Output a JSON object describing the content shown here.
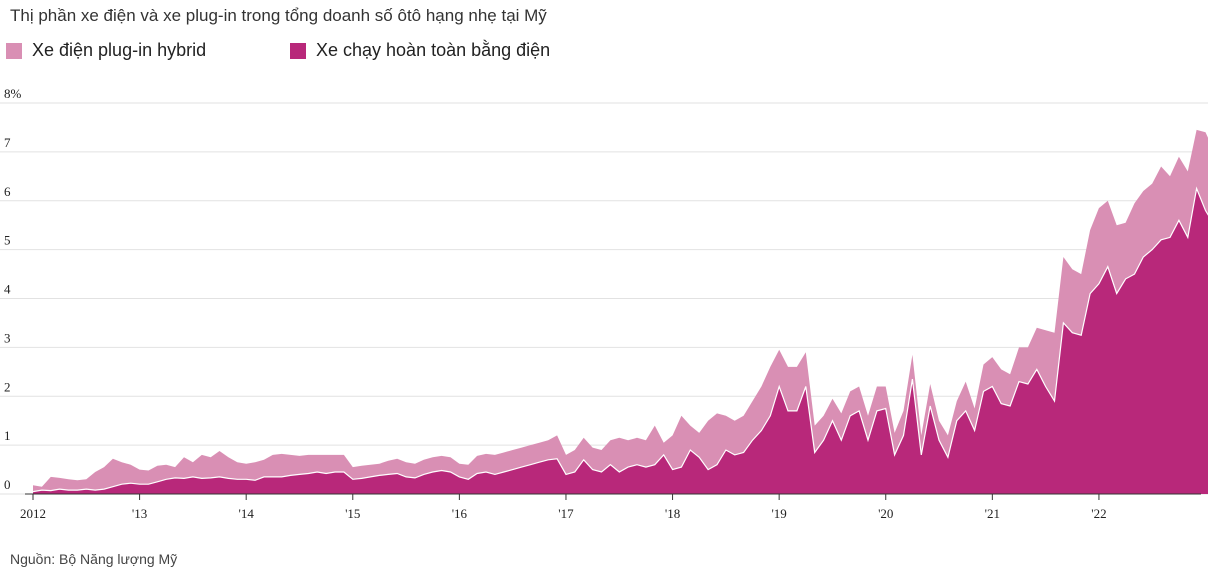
{
  "chart_data": {
    "type": "area",
    "title": "Thị phần xe điện và xe plug-in trong tổng doanh số ôtô hạng nhẹ tại Mỹ",
    "source": "Nguồn: Bộ Năng lượng Mỹ",
    "ylim": [
      0,
      8
    ],
    "y_ticks": [
      {
        "value": 0,
        "label": "0"
      },
      {
        "value": 1,
        "label": "1"
      },
      {
        "value": 2,
        "label": "2"
      },
      {
        "value": 3,
        "label": "3"
      },
      {
        "value": 4,
        "label": "4"
      },
      {
        "value": 5,
        "label": "5"
      },
      {
        "value": 6,
        "label": "6"
      },
      {
        "value": 7,
        "label": "7"
      },
      {
        "value": 8,
        "label": "8%"
      }
    ],
    "x_ticks": [
      {
        "value": 2012,
        "label": "2012"
      },
      {
        "value": 2013,
        "label": "'13"
      },
      {
        "value": 2014,
        "label": "'14"
      },
      {
        "value": 2015,
        "label": "'15"
      },
      {
        "value": 2016,
        "label": "'16"
      },
      {
        "value": 2017,
        "label": "'17"
      },
      {
        "value": 2018,
        "label": "'18"
      },
      {
        "value": 2019,
        "label": "'19"
      },
      {
        "value": 2020,
        "label": "'20"
      },
      {
        "value": 2021,
        "label": "'21"
      },
      {
        "value": 2022,
        "label": "'22"
      }
    ],
    "x_start": 2012.0,
    "x_step": 0.0833333,
    "legend": [
      {
        "name": "Xe điện plug-in hybrid",
        "color": "#d98fb4"
      },
      {
        "name": "Xe chạy hoàn toàn bằng điện",
        "color": "#b8287a"
      }
    ],
    "series": [
      {
        "name": "Xe chạy hoàn toàn bằng điện",
        "color": "#b8287a",
        "values": [
          0.05,
          0.08,
          0.07,
          0.1,
          0.08,
          0.08,
          0.1,
          0.08,
          0.1,
          0.15,
          0.2,
          0.22,
          0.2,
          0.2,
          0.25,
          0.3,
          0.33,
          0.32,
          0.35,
          0.32,
          0.33,
          0.35,
          0.32,
          0.3,
          0.3,
          0.28,
          0.35,
          0.35,
          0.35,
          0.38,
          0.4,
          0.42,
          0.45,
          0.42,
          0.45,
          0.45,
          0.3,
          0.32,
          0.35,
          0.38,
          0.4,
          0.42,
          0.35,
          0.33,
          0.4,
          0.45,
          0.48,
          0.45,
          0.35,
          0.3,
          0.42,
          0.45,
          0.4,
          0.45,
          0.5,
          0.55,
          0.6,
          0.65,
          0.7,
          0.72,
          0.4,
          0.45,
          0.7,
          0.5,
          0.45,
          0.6,
          0.45,
          0.55,
          0.6,
          0.55,
          0.6,
          0.8,
          0.5,
          0.55,
          0.9,
          0.75,
          0.5,
          0.6,
          0.9,
          0.8,
          0.85,
          1.1,
          1.3,
          1.6,
          2.2,
          1.7,
          1.7,
          2.2,
          0.85,
          1.1,
          1.5,
          1.1,
          1.6,
          1.7,
          1.1,
          1.7,
          1.75,
          0.8,
          1.2,
          2.35,
          0.8,
          1.8,
          1.1,
          0.75,
          1.5,
          1.7,
          1.3,
          2.1,
          2.2,
          1.85,
          1.8,
          2.3,
          2.25,
          2.55,
          2.2,
          1.9,
          3.5,
          3.3,
          3.25,
          4.1,
          4.3,
          4.65,
          4.1,
          4.4,
          4.5,
          4.85,
          5.0,
          5.2,
          5.25,
          5.6,
          5.25,
          6.25,
          5.8,
          5.5,
          6.25
        ]
      },
      {
        "name": "Xe điện plug-in hybrid",
        "color": "#d98fb4",
        "stacked_total": [
          0.18,
          0.15,
          0.35,
          0.33,
          0.3,
          0.28,
          0.3,
          0.45,
          0.55,
          0.72,
          0.65,
          0.6,
          0.5,
          0.48,
          0.58,
          0.6,
          0.55,
          0.75,
          0.65,
          0.8,
          0.75,
          0.88,
          0.75,
          0.65,
          0.62,
          0.65,
          0.7,
          0.8,
          0.82,
          0.8,
          0.78,
          0.8,
          0.8,
          0.8,
          0.8,
          0.8,
          0.55,
          0.58,
          0.6,
          0.62,
          0.68,
          0.72,
          0.65,
          0.62,
          0.7,
          0.75,
          0.78,
          0.75,
          0.62,
          0.6,
          0.78,
          0.82,
          0.8,
          0.85,
          0.9,
          0.95,
          1.0,
          1.05,
          1.1,
          1.2,
          0.8,
          0.9,
          1.15,
          0.95,
          0.9,
          1.1,
          1.15,
          1.1,
          1.15,
          1.1,
          1.4,
          1.05,
          1.2,
          1.6,
          1.4,
          1.25,
          1.5,
          1.65,
          1.6,
          1.5,
          1.6,
          1.9,
          2.2,
          2.6,
          2.95,
          2.6,
          2.6,
          2.9,
          1.4,
          1.6,
          1.95,
          1.65,
          2.1,
          2.2,
          1.6,
          2.2,
          2.2,
          1.25,
          1.7,
          2.85,
          1.2,
          2.25,
          1.5,
          1.2,
          1.9,
          2.3,
          1.75,
          2.65,
          2.8,
          2.55,
          2.45,
          3.0,
          3.0,
          3.4,
          3.35,
          3.3,
          4.85,
          4.6,
          4.5,
          5.4,
          5.85,
          6.0,
          5.5,
          5.55,
          5.95,
          6.2,
          6.35,
          6.7,
          6.5,
          6.9,
          6.6,
          7.45,
          7.4,
          7.0,
          7.8
        ]
      }
    ]
  }
}
